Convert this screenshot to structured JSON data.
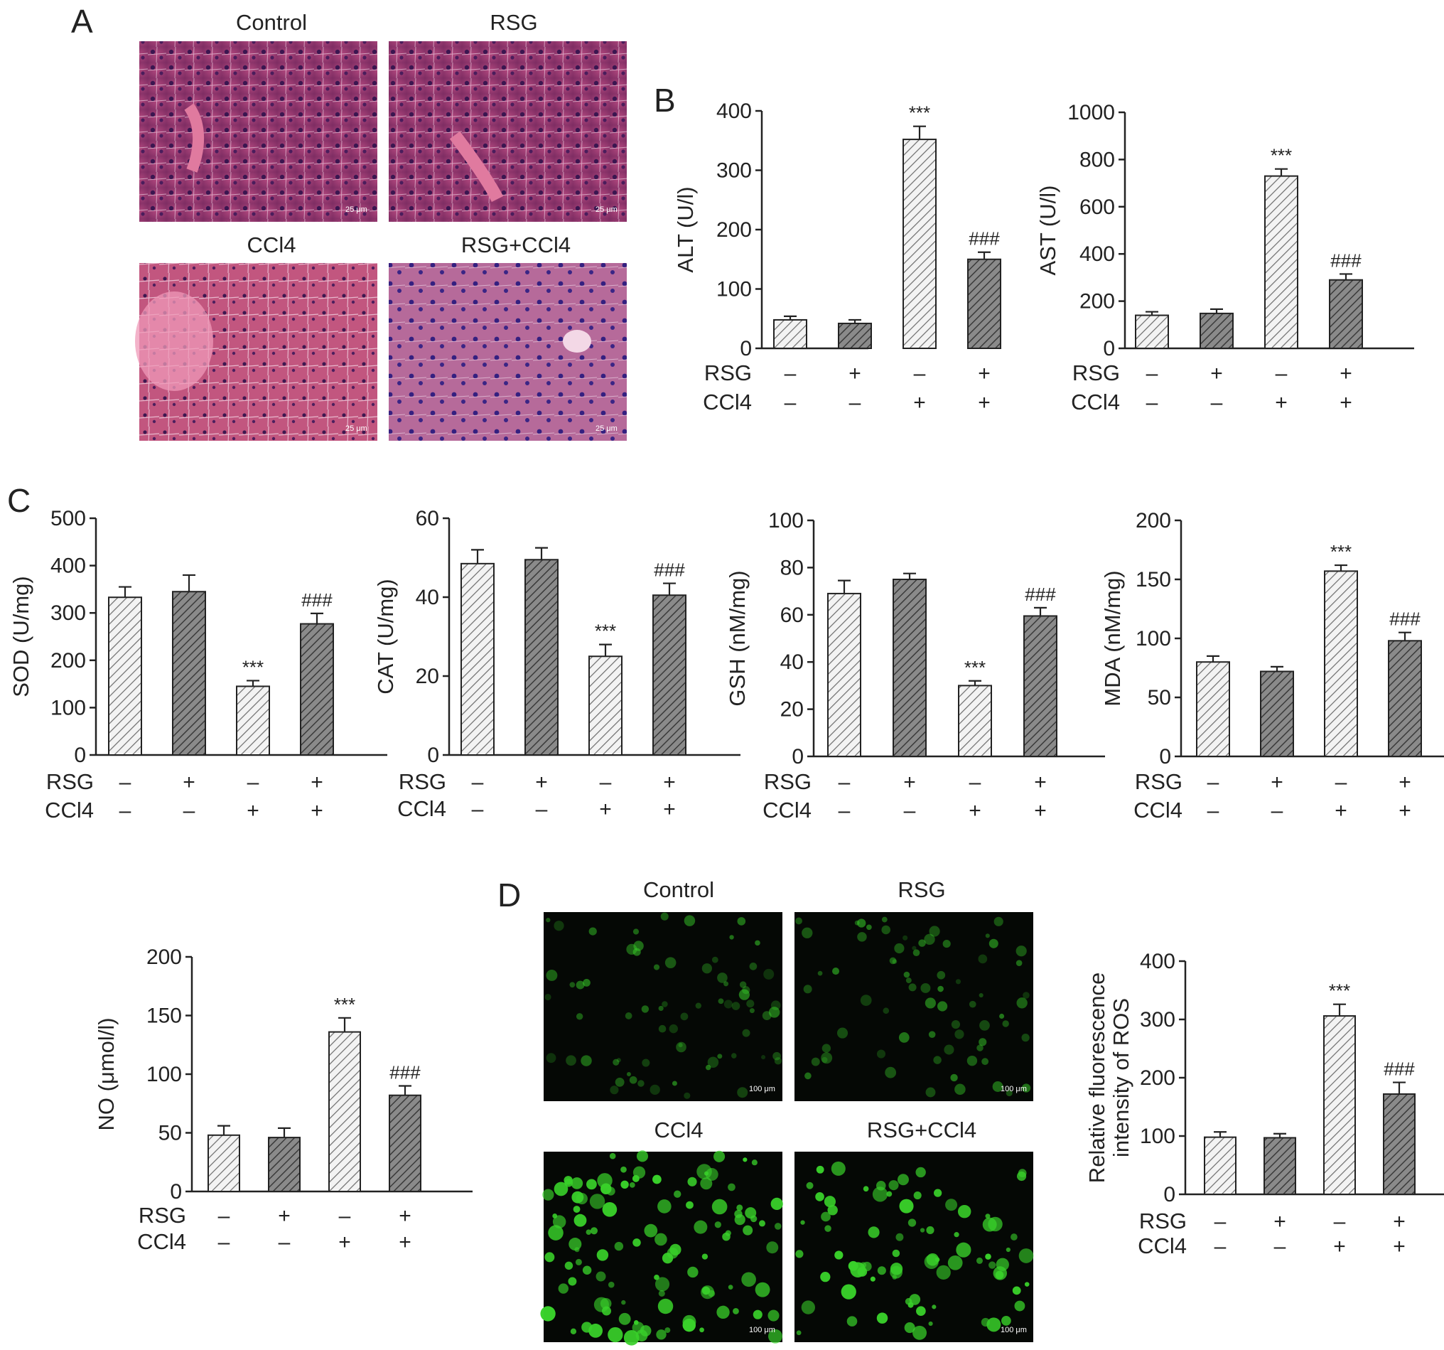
{
  "panels": {
    "a": {
      "label": "A",
      "titles": [
        "Control",
        "RSG",
        "CCl4",
        "RSG+CCl4"
      ],
      "scale_bar": "25 μm"
    },
    "b": {
      "label": "B"
    },
    "c": {
      "label": "C"
    },
    "d": {
      "label": "D",
      "titles": [
        "Control",
        "RSG",
        "CCl4",
        "RSG+CCl4"
      ],
      "scale_bar": "100 μm"
    }
  },
  "colors": {
    "hatch_light": "#d8d8d8",
    "hatch_dark": "#6f6f6f",
    "he_stain": "#a03a6e",
    "ros_green": "#39d12a"
  },
  "rows": {
    "rsg_label": "RSG",
    "ccl4_label": "CCl4",
    "rsg": [
      "–",
      "+",
      "–",
      "+"
    ],
    "ccl4": [
      "–",
      "–",
      "+",
      "+"
    ]
  },
  "chart_data": [
    {
      "id": "alt",
      "type": "bar",
      "ylabel": "ALT (U/l)",
      "ylim": [
        0,
        400
      ],
      "yticks": [
        0,
        100,
        200,
        300,
        400
      ],
      "values": [
        48,
        42,
        352,
        150
      ],
      "errors": [
        6,
        6,
        22,
        12
      ],
      "annotations": [
        "",
        "",
        "***",
        "###"
      ]
    },
    {
      "id": "ast",
      "type": "bar",
      "ylabel": "AST (U/l)",
      "ylim": [
        0,
        1000
      ],
      "yticks": [
        0,
        200,
        400,
        600,
        800,
        1000
      ],
      "values": [
        140,
        148,
        730,
        290
      ],
      "errors": [
        15,
        18,
        30,
        25
      ],
      "annotations": [
        "",
        "",
        "***",
        "###"
      ]
    },
    {
      "id": "sod",
      "type": "bar",
      "ylabel": "SOD (U/mg)",
      "ylim": [
        0,
        500
      ],
      "yticks": [
        0,
        100,
        200,
        300,
        400,
        500
      ],
      "values": [
        333,
        345,
        145,
        277
      ],
      "errors": [
        22,
        35,
        12,
        22
      ],
      "annotations": [
        "",
        "",
        "***",
        "###"
      ]
    },
    {
      "id": "cat",
      "type": "bar",
      "ylabel": "CAT (U/mg)",
      "ylim": [
        0,
        60
      ],
      "yticks": [
        0,
        20,
        40,
        60
      ],
      "values": [
        48.5,
        49.5,
        25,
        40.5
      ],
      "errors": [
        3.5,
        3,
        3,
        3
      ],
      "annotations": [
        "",
        "",
        "***",
        "###"
      ]
    },
    {
      "id": "gsh",
      "type": "bar",
      "ylabel": "GSH (nM/mg)",
      "ylim": [
        0,
        100
      ],
      "yticks": [
        0,
        20,
        40,
        60,
        80,
        100
      ],
      "values": [
        69,
        75,
        30,
        59.5
      ],
      "errors": [
        5.5,
        2.5,
        2,
        3.5
      ],
      "annotations": [
        "",
        "",
        "***",
        "###"
      ]
    },
    {
      "id": "mda",
      "type": "bar",
      "ylabel": "MDA (nM/mg)",
      "ylim": [
        0,
        200
      ],
      "yticks": [
        0,
        50,
        100,
        150,
        200
      ],
      "values": [
        80,
        72,
        157,
        98
      ],
      "errors": [
        5,
        4,
        5,
        7
      ],
      "annotations": [
        "",
        "",
        "***",
        "###"
      ]
    },
    {
      "id": "no",
      "type": "bar",
      "ylabel": "NO (μmol/l)",
      "ylim": [
        0,
        200
      ],
      "yticks": [
        0,
        50,
        100,
        150,
        200
      ],
      "values": [
        48,
        46,
        136,
        82
      ],
      "errors": [
        8,
        8,
        12,
        8
      ],
      "annotations": [
        "",
        "",
        "***",
        "###"
      ]
    },
    {
      "id": "ros",
      "type": "bar",
      "ylabel": [
        "Relative fluorescence",
        "intensity of ROS"
      ],
      "ylim": [
        0,
        400
      ],
      "yticks": [
        0,
        100,
        200,
        300,
        400
      ],
      "values": [
        98,
        97,
        306,
        172
      ],
      "errors": [
        9,
        7,
        20,
        20
      ],
      "annotations": [
        "",
        "",
        "***",
        "###"
      ]
    }
  ]
}
